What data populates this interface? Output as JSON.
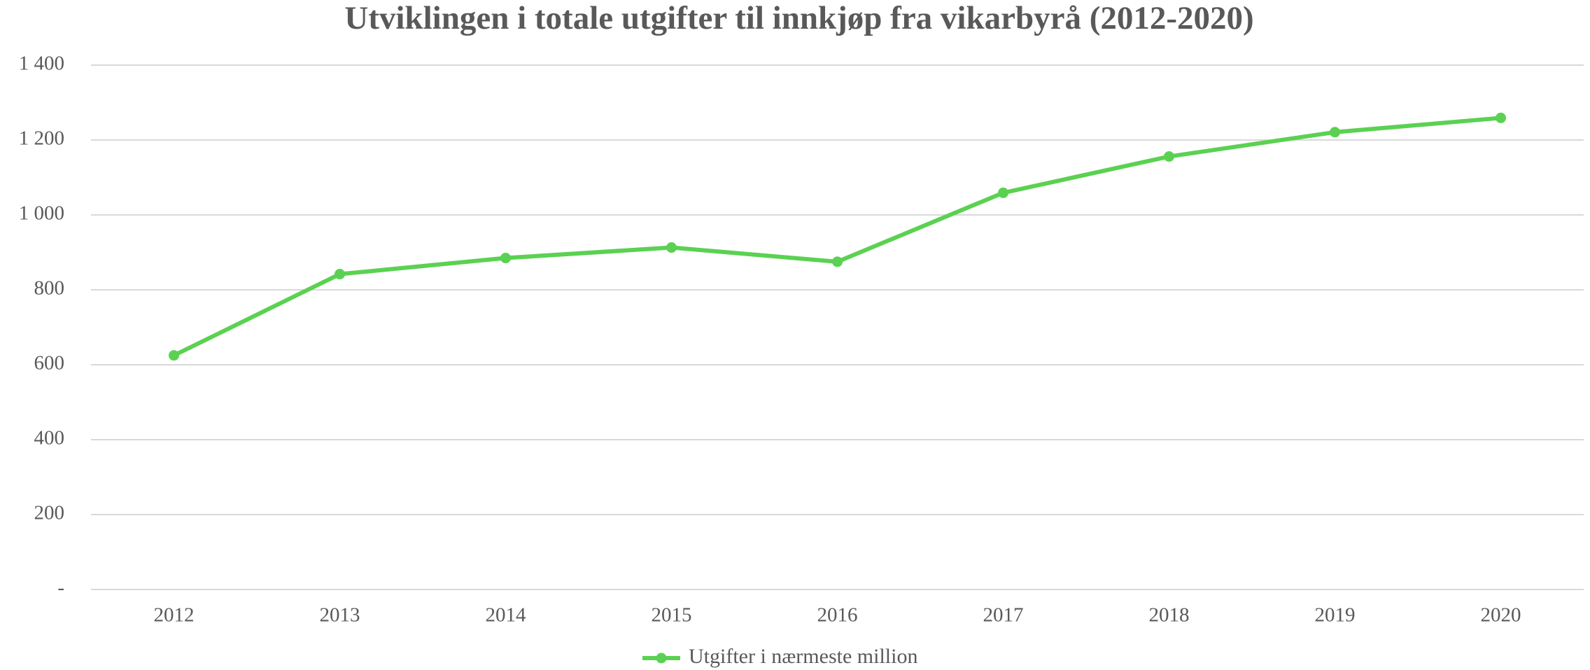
{
  "chart_data": {
    "type": "line",
    "title": "Utviklingen i totale utgifter til innkjøp fra vikarbyrå (2012-2020)",
    "categories": [
      "2012",
      "2013",
      "2014",
      "2015",
      "2016",
      "2017",
      "2018",
      "2019",
      "2020"
    ],
    "series": [
      {
        "name": "Utgifter i nærmeste million",
        "color": "#5bd152",
        "values": [
          625,
          842,
          885,
          913,
          875,
          1059,
          1156,
          1221,
          1259
        ]
      }
    ],
    "ylim": [
      0,
      1400
    ],
    "yticks": [
      {
        "value": 0,
        "label": "-"
      },
      200,
      400,
      600,
      800,
      {
        "value": 1000,
        "label": "1 000"
      },
      {
        "value": 1200,
        "label": "1 200"
      },
      {
        "value": 1400,
        "label": "1 400"
      }
    ],
    "grid": true,
    "legend": "bottom"
  }
}
